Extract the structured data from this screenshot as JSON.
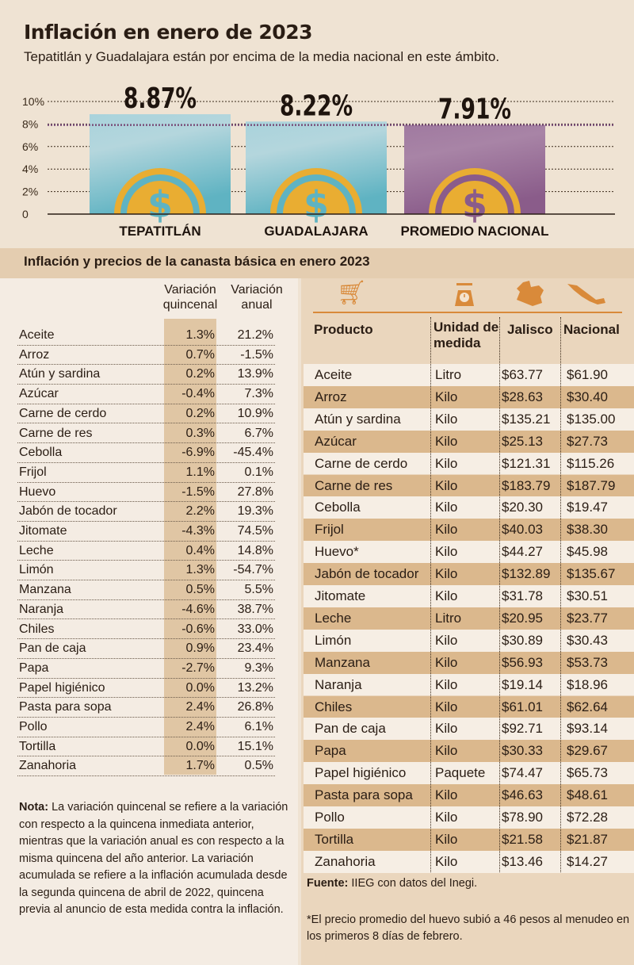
{
  "title": "Inflación en enero de 2023",
  "subtitle": "Tepatitlán y Guadalajara están por encima de la media nacional en este ámbito.",
  "chart_data": {
    "type": "bar",
    "categories": [
      "TEPATITLÁN",
      "GUADALAJARA",
      "PROMEDIO NACIONAL"
    ],
    "values": [
      8.87,
      8.22,
      7.91
    ],
    "data_labels": [
      "8.87%",
      "8.22%",
      "7.91%"
    ],
    "yticks": [
      "0",
      "2%",
      "4%",
      "6%",
      "8%",
      "10%"
    ],
    "ylim": [
      0,
      10
    ],
    "reference_line": 7.91,
    "colors": [
      "#5fb3c2",
      "#5fb3c2",
      "#8a5c8a"
    ],
    "coin_color": "#e9ad32"
  },
  "section_title": "Inflación y precios de la canasta básica en enero 2023",
  "left_table": {
    "headers": [
      "Variación quincenal",
      "Variación anual"
    ],
    "rows": [
      [
        "Aceite",
        "1.3%",
        "21.2%"
      ],
      [
        "Arroz",
        "0.7%",
        "-1.5%"
      ],
      [
        "Atún y sardina",
        "0.2%",
        "13.9%"
      ],
      [
        "Azúcar",
        "-0.4%",
        "7.3%"
      ],
      [
        "Carne de cerdo",
        "0.2%",
        "10.9%"
      ],
      [
        "Carne de res",
        "0.3%",
        "6.7%"
      ],
      [
        "Cebolla",
        "-6.9%",
        "-45.4%"
      ],
      [
        "Frijol",
        "1.1%",
        "0.1%"
      ],
      [
        "Huevo",
        "-1.5%",
        "27.8%"
      ],
      [
        "Jabón de tocador",
        "2.2%",
        "19.3%"
      ],
      [
        "Jitomate",
        "-4.3%",
        "74.5%"
      ],
      [
        "Leche",
        "0.4%",
        "14.8%"
      ],
      [
        "Limón",
        "1.3%",
        "-54.7%"
      ],
      [
        "Manzana",
        "0.5%",
        "5.5%"
      ],
      [
        "Naranja",
        "-4.6%",
        "38.7%"
      ],
      [
        "Chiles",
        "-0.6%",
        "33.0%"
      ],
      [
        "Pan de caja",
        "0.9%",
        "23.4%"
      ],
      [
        "Papa",
        "-2.7%",
        "9.3%"
      ],
      [
        "Papel higiénico",
        "0.0%",
        "13.2%"
      ],
      [
        "Pasta para sopa",
        "2.4%",
        "26.8%"
      ],
      [
        "Pollo",
        "2.4%",
        "6.1%"
      ],
      [
        "Tortilla",
        "0.0%",
        "15.1%"
      ],
      [
        "Zanahoria",
        "1.7%",
        "0.5%"
      ]
    ]
  },
  "right_table": {
    "headers": [
      "Producto",
      "Unidad de medida",
      "Jalisco",
      "Nacional"
    ],
    "rows": [
      [
        "Aceite",
        "Litro",
        "$63.77",
        "$61.90"
      ],
      [
        "Arroz",
        "Kilo",
        "$28.63",
        "$30.40"
      ],
      [
        "Atún y sardina",
        "Kilo",
        "$135.21",
        "$135.00"
      ],
      [
        "Azúcar",
        "Kilo",
        "$25.13",
        "$27.73"
      ],
      [
        "Carne de cerdo",
        "Kilo",
        "$121.31",
        "$115.26"
      ],
      [
        "Carne de res",
        "Kilo",
        "$183.79",
        "$187.79"
      ],
      [
        "Cebolla",
        "Kilo",
        "$20.30",
        "$19.47"
      ],
      [
        "Frijol",
        "Kilo",
        "$40.03",
        "$38.30"
      ],
      [
        "Huevo*",
        "Kilo",
        "$44.27",
        "$45.98"
      ],
      [
        "Jabón de tocador",
        "Kilo",
        "$132.89",
        "$135.67"
      ],
      [
        "Jitomate",
        "Kilo",
        "$31.78",
        "$30.51"
      ],
      [
        "Leche",
        "Litro",
        "$20.95",
        "$23.77"
      ],
      [
        "Limón",
        "Kilo",
        "$30.89",
        "$30.43"
      ],
      [
        "Manzana",
        "Kilo",
        "$56.93",
        "$53.73"
      ],
      [
        "Naranja",
        "Kilo",
        "$19.14",
        "$18.96"
      ],
      [
        "Chiles",
        "Kilo",
        "$61.01",
        "$62.64"
      ],
      [
        "Pan de caja",
        "Kilo",
        "$92.71",
        "$93.14"
      ],
      [
        "Papa",
        "Kilo",
        "$30.33",
        "$29.67"
      ],
      [
        "Papel higiénico",
        "Paquete",
        "$74.47",
        "$65.73"
      ],
      [
        "Pasta para sopa",
        "Kilo",
        "$46.63",
        "$48.61"
      ],
      [
        "Pollo",
        "Kilo",
        "$78.90",
        "$72.28"
      ],
      [
        "Tortilla",
        "Kilo",
        "$21.58",
        "$21.87"
      ],
      [
        "Zanahoria",
        "Kilo",
        "$13.46",
        "$14.27"
      ]
    ]
  },
  "note_label": "Nota:",
  "note_text": " La variación quincenal se refiere a la variación con respecto a la quincena inmediata anterior, mientras que la variación anual es con respecto a la misma quincena del año anterior. La variación acumulada se refiere a la inflación acumulada desde la segunda quincena de abril de 2022, quincena previa al anuncio de esta medida contra la inflación.",
  "source_label": "Fuente:",
  "source_text": " IIEG con datos del Inegi.",
  "footnote": "*El precio promedio del huevo subió a 46 pesos al menudeo en los primeros 8 días de febrero."
}
